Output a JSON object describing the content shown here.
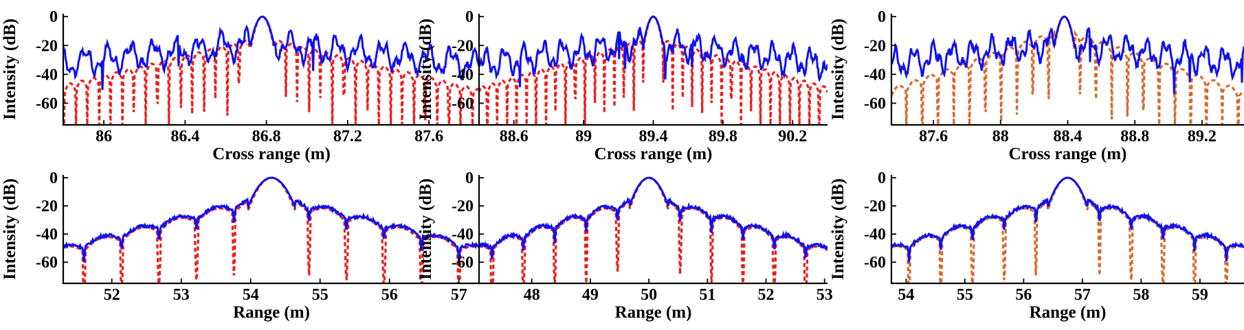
{
  "colors": {
    "solid": "#1010ee",
    "dashed_red": "#ee1c1c",
    "dashed_orange": "#d9692a",
    "axis": "#000000"
  },
  "chart_data": [
    {
      "id": "p1",
      "type": "line",
      "xlabel": "Cross range (m)",
      "ylabel": "Intensity (dB)",
      "xlim": [
        85.8,
        87.85
      ],
      "ylim": [
        -75,
        2
      ],
      "xticks": [
        86,
        86.4,
        86.8,
        87.2,
        87.6
      ],
      "xtick_labels": [
        "86",
        "86.4",
        "86.8",
        "87.2",
        "87.6"
      ],
      "yticks": [
        0,
        -20,
        -40,
        -60
      ],
      "ytick_labels": [
        "0",
        "-20",
        "-40",
        "-60"
      ],
      "peak": 86.78,
      "series": [
        {
          "style": "solid",
          "color": "#1010ee"
        },
        {
          "style": "dashed",
          "color": "#ee1c1c"
        }
      ]
    },
    {
      "id": "p2",
      "type": "line",
      "xlabel": "Cross range (m)",
      "ylabel": "Intensity (dB)",
      "xlim": [
        88.4,
        90.4
      ],
      "ylim": [
        -75,
        2
      ],
      "xticks": [
        88.6,
        89,
        89.4,
        89.8,
        90.2
      ],
      "xtick_labels": [
        "88.6",
        "89",
        "89.4",
        "89.8",
        "90.2"
      ],
      "yticks": [
        0,
        -20,
        -40,
        -60
      ],
      "ytick_labels": [
        "0",
        "-20",
        "-40",
        "-60"
      ],
      "peak": 89.4,
      "series": [
        {
          "style": "solid",
          "color": "#1010ee"
        },
        {
          "style": "dashed",
          "color": "#ee1c1c"
        }
      ]
    },
    {
      "id": "p3",
      "type": "line",
      "xlabel": "Cross range (m)",
      "ylabel": "Intensity (dB)",
      "xlim": [
        87.35,
        89.45
      ],
      "ylim": [
        -75,
        2
      ],
      "xticks": [
        87.6,
        88,
        88.4,
        88.8,
        89.2
      ],
      "xtick_labels": [
        "87.6",
        "88",
        "88.4",
        "88.8",
        "89.2"
      ],
      "yticks": [
        0,
        -20,
        -40,
        -60
      ],
      "ytick_labels": [
        "0",
        "-20",
        "-40",
        "-60"
      ],
      "peak": 88.38,
      "series": [
        {
          "style": "solid",
          "color": "#1010ee"
        },
        {
          "style": "dashed",
          "color": "#d9692a"
        }
      ]
    },
    {
      "id": "p4",
      "type": "line",
      "xlabel": "Range (m)",
      "ylabel": "Intensity (dB)",
      "xlim": [
        51.3,
        57.3
      ],
      "ylim": [
        -75,
        2
      ],
      "xticks": [
        52,
        53,
        54,
        55,
        56,
        57
      ],
      "xtick_labels": [
        "52",
        "53",
        "54",
        "55",
        "56",
        "57"
      ],
      "yticks": [
        0,
        -20,
        -40,
        -60
      ],
      "ytick_labels": [
        "0",
        "-20",
        "-40",
        "-60"
      ],
      "peak": 54.3,
      "series": [
        {
          "style": "solid",
          "color": "#1010ee"
        },
        {
          "style": "dashed",
          "color": "#ee1c1c"
        }
      ]
    },
    {
      "id": "p5",
      "type": "line",
      "xlabel": "Range (m)",
      "ylabel": "Intensity (dB)",
      "xlim": [
        47.1,
        53.05
      ],
      "ylim": [
        -75,
        2
      ],
      "xticks": [
        48,
        49,
        50,
        51,
        52,
        53
      ],
      "xtick_labels": [
        "48",
        "49",
        "50",
        "51",
        "52",
        "53"
      ],
      "yticks": [
        0,
        -20,
        -40,
        -60
      ],
      "ytick_labels": [
        "0",
        "-20",
        "-40",
        "-60"
      ],
      "peak": 50.0,
      "series": [
        {
          "style": "solid",
          "color": "#1010ee"
        },
        {
          "style": "dashed",
          "color": "#ee1c1c"
        }
      ]
    },
    {
      "id": "p6",
      "type": "line",
      "xlabel": "Range (m)",
      "ylabel": "Intensity (dB)",
      "xlim": [
        53.75,
        59.75
      ],
      "ylim": [
        -75,
        2
      ],
      "xticks": [
        54,
        55,
        56,
        57,
        58,
        59
      ],
      "xtick_labels": [
        "54",
        "55",
        "56",
        "57",
        "58",
        "59"
      ],
      "yticks": [
        0,
        -20,
        -40,
        -60
      ],
      "ytick_labels": [
        "0",
        "-20",
        "-40",
        "-60"
      ],
      "peak": 56.75,
      "series": [
        {
          "style": "solid",
          "color": "#1010ee"
        },
        {
          "style": "dashed",
          "color": "#d9692a"
        }
      ]
    }
  ]
}
